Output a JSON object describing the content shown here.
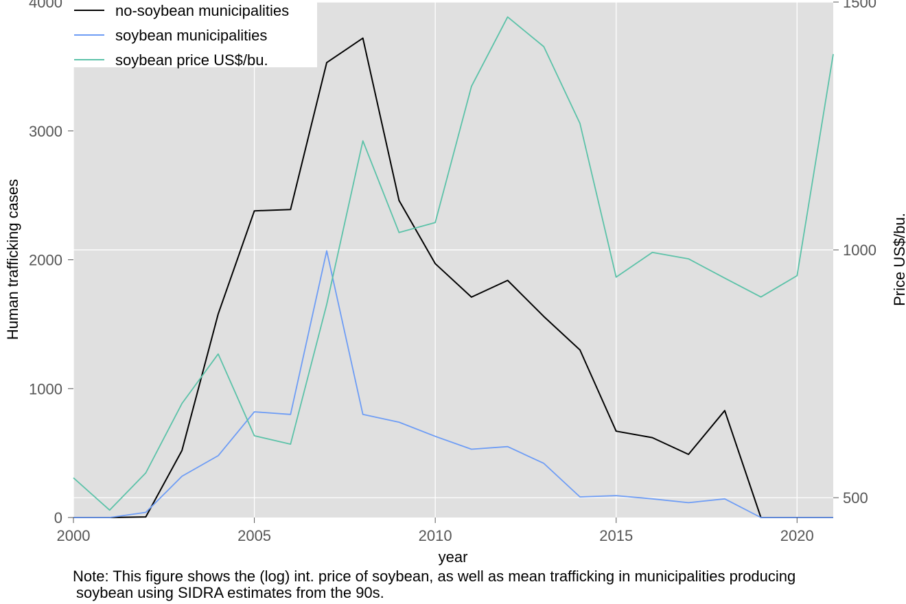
{
  "chart_data": {
    "type": "line",
    "xlabel": "year",
    "ylabel": "Human trafficking cases",
    "y2label": "Price US$/bu.",
    "xlim": [
      2000,
      2021
    ],
    "ylim": [
      0,
      4000
    ],
    "y2lim": [
      460,
      1500
    ],
    "x_ticks": [
      2000,
      2005,
      2010,
      2015,
      2020
    ],
    "y_ticks": [
      0,
      1000,
      2000,
      3000,
      4000
    ],
    "y2_ticks": [
      500,
      1000,
      1500
    ],
    "grid": true,
    "background": "#e0e0e0",
    "legend_position": "top-left",
    "x": [
      2000,
      2001,
      2002,
      2003,
      2004,
      2005,
      2006,
      2007,
      2008,
      2009,
      2010,
      2011,
      2012,
      2013,
      2014,
      2015,
      2016,
      2017,
      2018,
      2019,
      2020,
      2021
    ],
    "series": [
      {
        "name": "no-soybean municipalities",
        "axis": "left",
        "color": "#000000",
        "values": [
          0,
          0,
          5,
          520,
          1580,
          2380,
          2390,
          3530,
          3720,
          2460,
          1970,
          1710,
          1840,
          1560,
          1300,
          670,
          620,
          490,
          830,
          0,
          0,
          0
        ]
      },
      {
        "name": "soybean municipalities",
        "axis": "left",
        "color": "#6d9cf5",
        "values": [
          0,
          0,
          40,
          320,
          480,
          820,
          800,
          2070,
          800,
          740,
          630,
          530,
          550,
          420,
          160,
          170,
          145,
          115,
          145,
          0,
          0,
          0
        ]
      },
      {
        "name": "soybean price US$/bu.",
        "axis": "right",
        "color": "#5bc2a8",
        "values": [
          540,
          475,
          550,
          690,
          790,
          625,
          608,
          890,
          1220,
          1035,
          1055,
          1330,
          1470,
          1410,
          1255,
          945,
          995,
          982,
          943,
          905,
          948,
          1395
        ]
      }
    ]
  },
  "note": {
    "line1": "Note: This figure shows the (log) int. price of soybean, as well as mean trafficking in municipalities producing",
    "line2": "soybean using SIDRA estimates from the 90s."
  }
}
